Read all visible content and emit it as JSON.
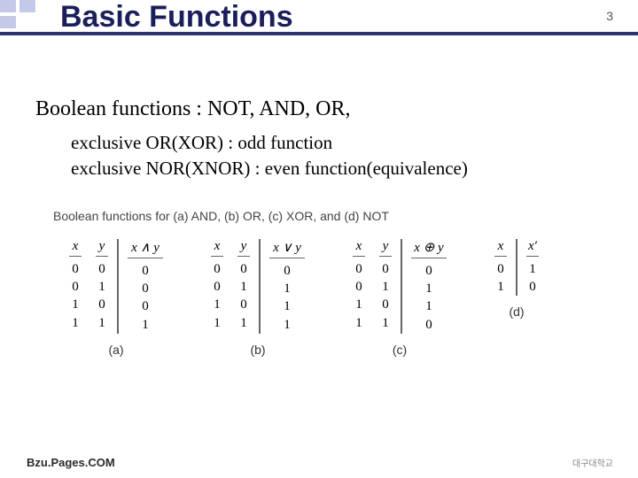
{
  "page_number": "3",
  "title": "Basic Functions",
  "heading": "Boolean functions : NOT, AND, OR,",
  "sub1": "exclusive OR(XOR) : odd function",
  "sub2": "exclusive NOR(XNOR) : even function(equivalence)",
  "figure_caption": "Boolean functions for (a) AND, (b) OR, (c) XOR, and (d) NOT",
  "tables": [
    {
      "label": "(a)",
      "cols": [
        {
          "h": "x",
          "cls": "in1",
          "vals": [
            "0",
            "0",
            "1",
            "1"
          ]
        },
        {
          "h": "y",
          "cls": "in2",
          "vals": [
            "0",
            "1",
            "0",
            "1"
          ]
        },
        {
          "h": "x ∧ y",
          "cls": "out",
          "wide": true,
          "vals": [
            "0",
            "0",
            "0",
            "1"
          ]
        }
      ]
    },
    {
      "label": "(b)",
      "cols": [
        {
          "h": "x",
          "cls": "in1",
          "vals": [
            "0",
            "0",
            "1",
            "1"
          ]
        },
        {
          "h": "y",
          "cls": "in2",
          "vals": [
            "0",
            "1",
            "0",
            "1"
          ]
        },
        {
          "h": "x ∨ y",
          "cls": "out",
          "wide": true,
          "vals": [
            "0",
            "1",
            "1",
            "1"
          ]
        }
      ]
    },
    {
      "label": "(c)",
      "cols": [
        {
          "h": "x",
          "cls": "in1",
          "vals": [
            "0",
            "0",
            "1",
            "1"
          ]
        },
        {
          "h": "y",
          "cls": "in2",
          "vals": [
            "0",
            "1",
            "0",
            "1"
          ]
        },
        {
          "h": "x ⊕ y",
          "cls": "out",
          "wide": true,
          "vals": [
            "0",
            "1",
            "1",
            "0"
          ]
        }
      ]
    },
    {
      "label": "(d)",
      "cols": [
        {
          "h": "x",
          "cls": "single-in",
          "vals": [
            "0",
            "1"
          ]
        },
        {
          "h": "x′",
          "cls": "single-out",
          "vals": [
            "1",
            "0"
          ]
        }
      ]
    }
  ],
  "footer": "Bzu.Pages.COM",
  "logo": "대구대학교",
  "colors": {
    "title": "#1a1f5c",
    "bar": "#2d3470",
    "decor": "#c5c9e8"
  }
}
